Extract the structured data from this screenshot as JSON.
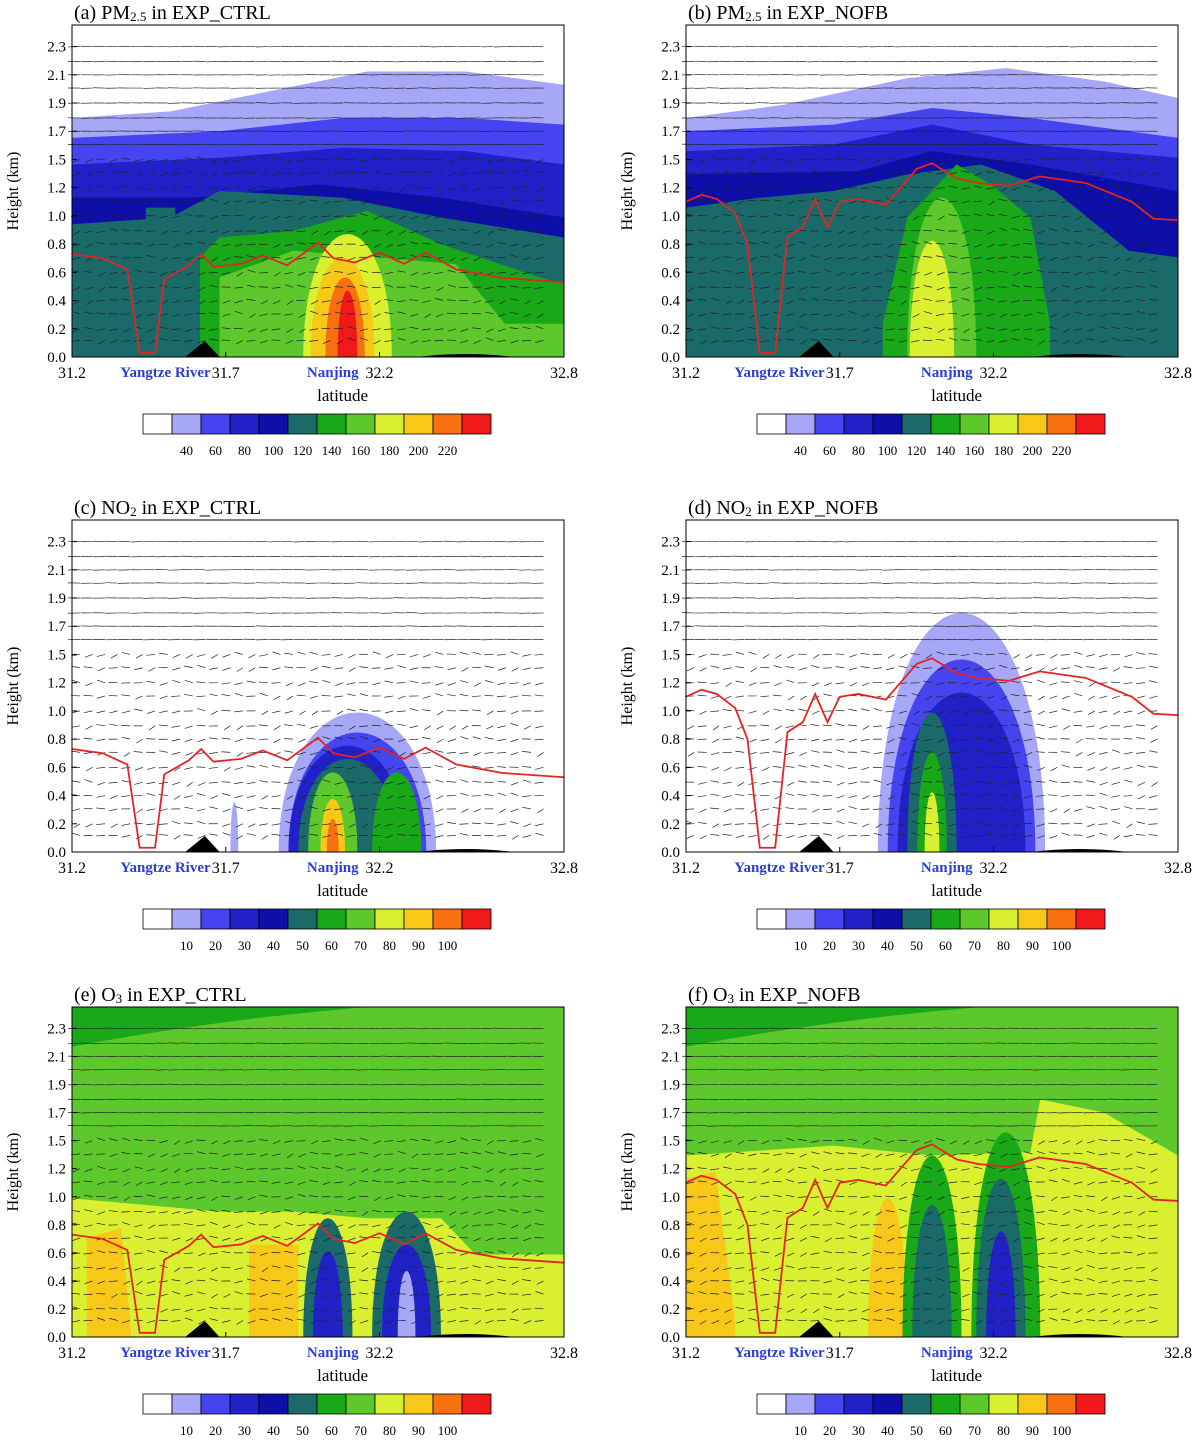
{
  "colors": {
    "scale": [
      "#ffffff",
      "#a7a7f8",
      "#4444f0",
      "#2121c8",
      "#0e0ea8",
      "#1a6a6a",
      "#18a818",
      "#5cc82c",
      "#d8f030",
      "#f8c818",
      "#f87010",
      "#f01818"
    ],
    "pbl_line": "#e62323",
    "place_label": "#2b3fd6",
    "terrain": "#000000"
  },
  "common": {
    "ylabel": "Height (km)",
    "xlabel": "latitude",
    "xticks": [
      "31.2",
      "31.7",
      "32.2",
      "32.8"
    ],
    "yticks": [
      "0.0",
      "0.2",
      "0.4",
      "0.6",
      "0.8",
      "1.0",
      "1.2",
      "1.5",
      "1.7",
      "1.9",
      "2.1",
      "2.3"
    ],
    "place_labels": {
      "river": "Yangtze River",
      "city": "Nanjing"
    },
    "xlim": [
      31.2,
      32.8
    ],
    "ylim_km": [
      0.0,
      2.35
    ]
  },
  "colorbars": {
    "pm25": [
      "40",
      "60",
      "80",
      "100",
      "120",
      "140",
      "160",
      "180",
      "200",
      "220"
    ],
    "no2_o3": [
      "10",
      "20",
      "30",
      "40",
      "50",
      "60",
      "70",
      "80",
      "90",
      "100"
    ]
  },
  "chart_data": [
    {
      "panel": "a",
      "type": "heatmap",
      "title": {
        "prefix": "(a) PM",
        "sub": "2.5",
        "suffix": " in EXP_CTRL"
      },
      "variable": "PM2.5",
      "experiment": "EXP_CTRL",
      "colorbar": "pm25",
      "pbl_height_km": {
        "lat": [
          31.2,
          31.3,
          31.38,
          31.42,
          31.47,
          31.5,
          31.58,
          31.62,
          31.66,
          31.75,
          31.82,
          31.9,
          32.0,
          32.05,
          32.12,
          32.2,
          32.28,
          32.35,
          32.45,
          32.6,
          32.8
        ],
        "h": [
          0.73,
          0.7,
          0.62,
          0.03,
          0.03,
          0.55,
          0.65,
          0.73,
          0.64,
          0.66,
          0.72,
          0.65,
          0.81,
          0.7,
          0.67,
          0.74,
          0.66,
          0.74,
          0.62,
          0.56,
          0.53
        ]
      }
    },
    {
      "panel": "b",
      "type": "heatmap",
      "title": {
        "prefix": "(b) PM",
        "sub": "2.5",
        "suffix": " in EXP_NOFB"
      },
      "variable": "PM2.5",
      "experiment": "EXP_NOFB",
      "colorbar": "pm25",
      "pbl_height_km": {
        "lat": [
          31.2,
          31.25,
          31.3,
          31.36,
          31.4,
          31.44,
          31.49,
          31.53,
          31.58,
          31.62,
          31.66,
          31.7,
          31.76,
          31.85,
          31.95,
          32.0,
          32.08,
          32.15,
          32.25,
          32.35,
          32.5,
          32.65,
          32.72,
          32.8
        ],
        "h": [
          1.1,
          1.15,
          1.12,
          1.02,
          0.8,
          0.03,
          0.03,
          0.85,
          0.92,
          1.12,
          0.92,
          1.1,
          1.12,
          1.08,
          1.4,
          1.46,
          1.3,
          1.25,
          1.22,
          1.32,
          1.25,
          1.1,
          0.98,
          0.97
        ]
      }
    },
    {
      "panel": "c",
      "type": "heatmap",
      "title": {
        "prefix": "(c) NO",
        "sub": "2",
        "suffix": " in EXP_CTRL"
      },
      "variable": "NO2",
      "experiment": "EXP_CTRL",
      "colorbar": "no2_o3",
      "pbl_height_km": {
        "lat": [
          31.2,
          31.3,
          31.38,
          31.42,
          31.47,
          31.5,
          31.58,
          31.62,
          31.66,
          31.75,
          31.82,
          31.9,
          32.0,
          32.05,
          32.12,
          32.2,
          32.28,
          32.35,
          32.45,
          32.6,
          32.8
        ],
        "h": [
          0.73,
          0.7,
          0.62,
          0.03,
          0.03,
          0.55,
          0.65,
          0.73,
          0.64,
          0.66,
          0.72,
          0.65,
          0.81,
          0.7,
          0.67,
          0.74,
          0.66,
          0.74,
          0.62,
          0.56,
          0.53
        ]
      }
    },
    {
      "panel": "d",
      "type": "heatmap",
      "title": {
        "prefix": "(d) NO",
        "sub": "2",
        "suffix": " in EXP_NOFB"
      },
      "variable": "NO2",
      "experiment": "EXP_NOFB",
      "colorbar": "no2_o3",
      "pbl_height_km": {
        "lat": [
          31.2,
          31.25,
          31.3,
          31.36,
          31.4,
          31.44,
          31.49,
          31.53,
          31.58,
          31.62,
          31.66,
          31.7,
          31.76,
          31.85,
          31.95,
          32.0,
          32.08,
          32.15,
          32.25,
          32.35,
          32.5,
          32.65,
          32.72,
          32.8
        ],
        "h": [
          1.1,
          1.15,
          1.12,
          1.02,
          0.8,
          0.03,
          0.03,
          0.85,
          0.92,
          1.12,
          0.92,
          1.1,
          1.12,
          1.08,
          1.4,
          1.46,
          1.3,
          1.25,
          1.22,
          1.32,
          1.25,
          1.1,
          0.98,
          0.97
        ]
      }
    },
    {
      "panel": "e",
      "type": "heatmap",
      "title": {
        "prefix": "(e) O",
        "sub": "3",
        "suffix": " in EXP_CTRL"
      },
      "variable": "O3",
      "experiment": "EXP_CTRL",
      "colorbar": "no2_o3",
      "pbl_height_km": {
        "lat": [
          31.2,
          31.3,
          31.38,
          31.42,
          31.47,
          31.5,
          31.58,
          31.62,
          31.66,
          31.75,
          31.82,
          31.9,
          32.0,
          32.05,
          32.12,
          32.2,
          32.28,
          32.35,
          32.45,
          32.6,
          32.8
        ],
        "h": [
          0.73,
          0.7,
          0.62,
          0.03,
          0.03,
          0.55,
          0.65,
          0.73,
          0.64,
          0.66,
          0.72,
          0.65,
          0.81,
          0.7,
          0.67,
          0.74,
          0.66,
          0.74,
          0.62,
          0.56,
          0.53
        ]
      }
    },
    {
      "panel": "f",
      "type": "heatmap",
      "title": {
        "prefix": "(f) O",
        "sub": "3",
        "suffix": " in EXP_NOFB"
      },
      "variable": "O3",
      "experiment": "EXP_NOFB",
      "colorbar": "no2_o3",
      "pbl_height_km": {
        "lat": [
          31.2,
          31.25,
          31.3,
          31.36,
          31.4,
          31.44,
          31.49,
          31.53,
          31.58,
          31.62,
          31.66,
          31.7,
          31.76,
          31.85,
          31.95,
          32.0,
          32.08,
          32.15,
          32.25,
          32.35,
          32.5,
          32.65,
          32.72,
          32.8
        ],
        "h": [
          1.1,
          1.15,
          1.12,
          1.02,
          0.8,
          0.03,
          0.03,
          0.85,
          0.92,
          1.12,
          0.92,
          1.1,
          1.12,
          1.08,
          1.4,
          1.46,
          1.3,
          1.25,
          1.22,
          1.32,
          1.25,
          1.1,
          0.98,
          0.97
        ]
      }
    }
  ]
}
